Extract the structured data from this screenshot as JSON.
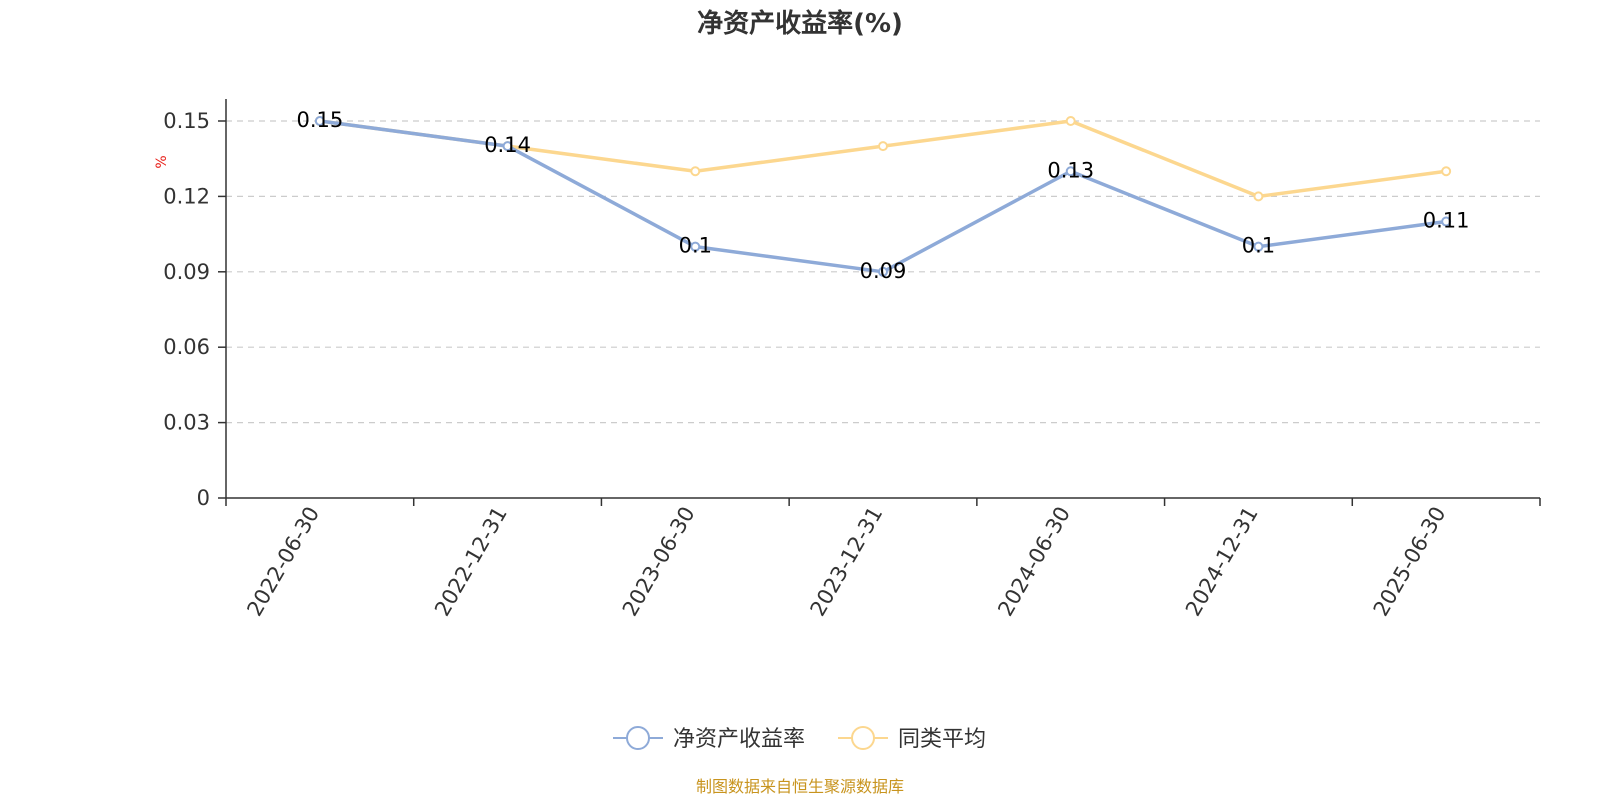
{
  "chart_data": {
    "type": "line",
    "title": "净资产收益率(%)",
    "ylabel": "%",
    "xlabel": "",
    "categories": [
      "2022-06-30",
      "2022-12-31",
      "2023-06-30",
      "2023-12-31",
      "2024-06-30",
      "2024-12-31",
      "2025-06-30"
    ],
    "series": [
      {
        "name": "净资产收益率",
        "color": "#8eaad8",
        "values": [
          0.15,
          0.14,
          0.1,
          0.09,
          0.13,
          0.1,
          0.11
        ],
        "labels": [
          "0.15",
          "0.14",
          "0.1",
          "0.09",
          "0.13",
          "0.1",
          "0.11"
        ]
      },
      {
        "name": "同类平均",
        "color": "#fcd78f",
        "values": [
          0.15,
          0.14,
          0.13,
          0.14,
          0.15,
          0.12,
          0.13
        ]
      }
    ],
    "yticks": [
      "0",
      "0.03",
      "0.06",
      "0.09",
      "0.12",
      "0.15"
    ],
    "ylim": [
      0,
      0.15
    ],
    "grid": true,
    "legend_position": "bottom-center"
  },
  "source": "制图数据来自恒生聚源数据库"
}
